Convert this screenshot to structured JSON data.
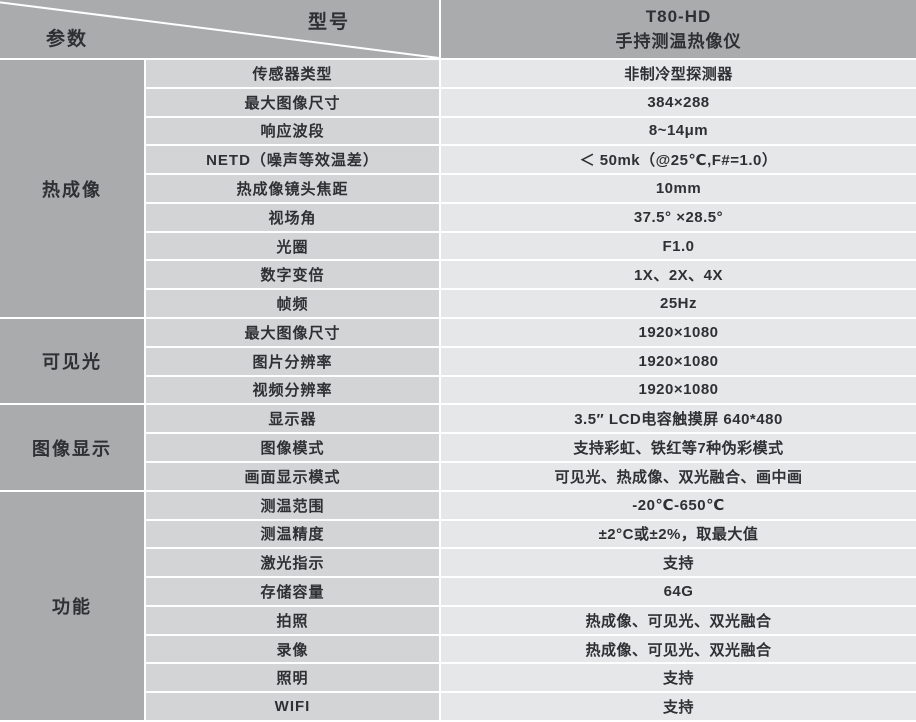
{
  "header": {
    "corner_top_right": "型号",
    "corner_bottom_left": "参数",
    "product_model": "T80-HD",
    "product_name": "手持测温热像仪"
  },
  "sections": [
    {
      "category": "热成像",
      "rows": [
        {
          "param": "传感器类型",
          "value": "非制冷型探测器"
        },
        {
          "param": "最大图像尺寸",
          "value": "384×288"
        },
        {
          "param": "响应波段",
          "value": "8~14μm"
        },
        {
          "param": "NETD（噪声等效温差）",
          "value": "＜ 50mk（@25℃,F#=1.0）"
        },
        {
          "param": "热成像镜头焦距",
          "value": "10mm"
        },
        {
          "param": "视场角",
          "value": "37.5° ×28.5°"
        },
        {
          "param": "光圈",
          "value": "F1.0"
        },
        {
          "param": "数字变倍",
          "value": "1X、2X、4X"
        },
        {
          "param": "帧频",
          "value": "25Hz"
        }
      ]
    },
    {
      "category": "可见光",
      "rows": [
        {
          "param": "最大图像尺寸",
          "value": "1920×1080"
        },
        {
          "param": "图片分辨率",
          "value": "1920×1080"
        },
        {
          "param": "视频分辨率",
          "value": "1920×1080"
        }
      ]
    },
    {
      "category": "图像显示",
      "rows": [
        {
          "param": "显示器",
          "value": "3.5″ LCD电容触摸屏 640*480"
        },
        {
          "param": "图像模式",
          "value": "支持彩虹、铁红等7种伪彩模式"
        },
        {
          "param": "画面显示模式",
          "value": "可见光、热成像、双光融合、画中画"
        }
      ]
    },
    {
      "category": "功能",
      "rows": [
        {
          "param": "测温范围",
          "value": "-20℃-650℃"
        },
        {
          "param": "测温精度",
          "value": "±2°C或±2%，取最大值"
        },
        {
          "param": "激光指示",
          "value": "支持"
        },
        {
          "param": "存储容量",
          "value": "64G"
        },
        {
          "param": "拍照",
          "value": "热成像、可见光、双光融合"
        },
        {
          "param": "录像",
          "value": "热成像、可见光、双光融合"
        },
        {
          "param": "照明",
          "value": "支持"
        },
        {
          "param": "WIFI",
          "value": "支持"
        }
      ]
    }
  ],
  "colors": {
    "header_bg": "#a9abad",
    "category_bg": "#a9abad",
    "param_bg": "#d3d4d6",
    "value_bg": "#e6e7e8",
    "grid_line": "#ffffff",
    "text": "#2f3033"
  }
}
